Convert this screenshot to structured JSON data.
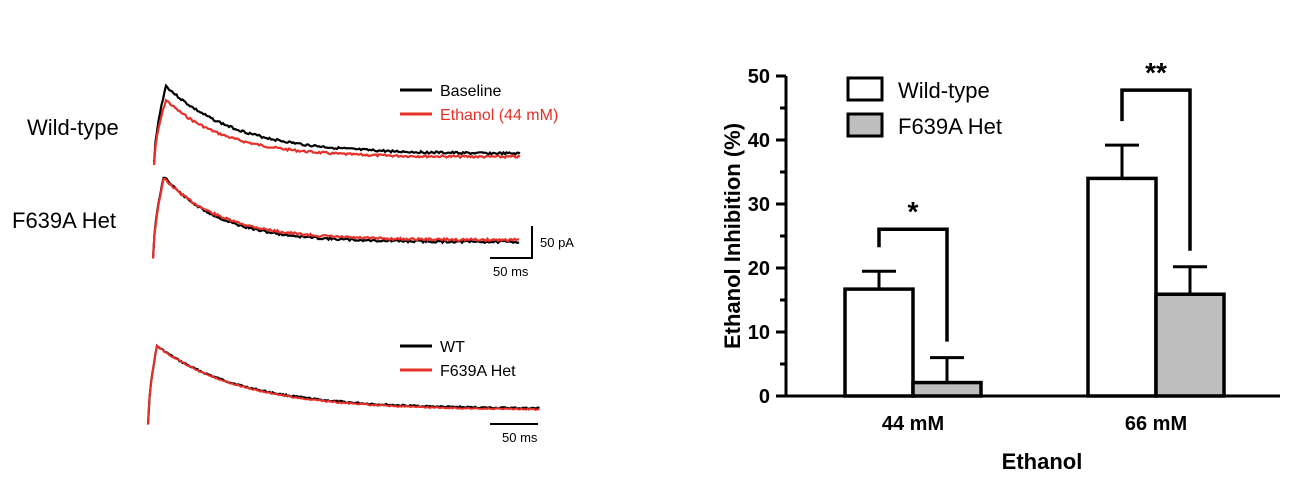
{
  "traces_panel": {
    "row_labels": [
      "Wild-type",
      "F639A Het"
    ],
    "legend_top": [
      {
        "label": "Baseline",
        "color": "#000000"
      },
      {
        "label": "Ethanol (44 mM)",
        "color": "#e8302a"
      }
    ],
    "legend_bottom": [
      {
        "label": "WT",
        "color": "#000000"
      },
      {
        "label": "F639A Het",
        "color": "#e8302a"
      }
    ],
    "scalebar_top": {
      "current_label": "50 pA",
      "time_label": "50 ms"
    },
    "scalebar_bottom": {
      "time_label": "50 ms"
    }
  },
  "chart_data": {
    "type": "bar",
    "categories": [
      "44 mM",
      "66 mM"
    ],
    "xlabel": "Ethanol",
    "ylabel": "Ethanol Inhibition (%)",
    "ylim": [
      0,
      50
    ],
    "yticks": [
      0,
      10,
      20,
      30,
      40,
      50
    ],
    "series": [
      {
        "name": "Wild-type",
        "values": [
          16.7,
          34.0
        ],
        "errors": [
          2.8,
          5.2
        ],
        "color": "#ffffff"
      },
      {
        "name": "F639A Het",
        "values": [
          2.1,
          15.9
        ],
        "errors": [
          3.9,
          4.3
        ],
        "color": "#bebebe"
      }
    ],
    "significance": [
      "*",
      "**"
    ],
    "legend_position": "top-left"
  }
}
